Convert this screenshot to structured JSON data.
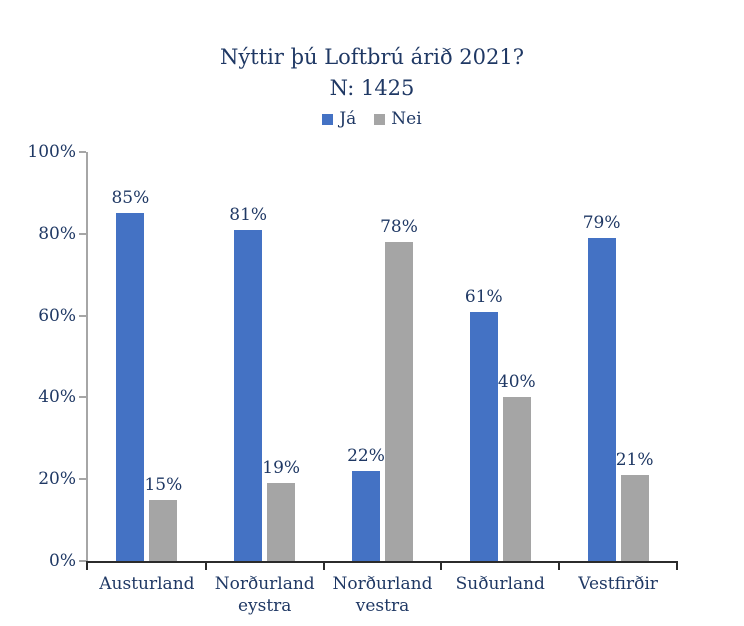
{
  "title": "Nýttir þú Loftbrú árið 2021?",
  "subtitle": "N: 1425",
  "colors": {
    "text": "#1F3864",
    "ja_blue": "#4472C4",
    "nei_gray": "#A5A5A5",
    "y_axis": "#A6A6A6",
    "x_axis": "#2B2B2B",
    "background": "#FFFFFF"
  },
  "chart_data": {
    "type": "bar",
    "title": "Nýttir þú Loftbrú árið 2021?",
    "subtitle": "N: 1425",
    "categories": [
      "Austurland",
      "Norðurland eystra",
      "Norðurland vestra",
      "Suðurland",
      "Vestfirðir"
    ],
    "series": [
      {
        "name": "Já",
        "color": "#4472C4",
        "values": [
          85,
          81,
          22,
          61,
          79
        ],
        "labels": [
          "85%",
          "81%",
          "22%",
          "61%",
          "79%"
        ]
      },
      {
        "name": "Nei",
        "color": "#A5A5A5",
        "values": [
          15,
          19,
          78,
          40,
          21
        ],
        "labels": [
          "15%",
          "19%",
          "78%",
          "40%",
          "21%"
        ]
      }
    ],
    "value_suffix": "%",
    "xlabel": "",
    "ylabel": "",
    "ylim": [
      0,
      100
    ],
    "ytick_step": 20,
    "ytick_labels": [
      "0%",
      "20%",
      "40%",
      "60%",
      "80%",
      "100%"
    ],
    "grid": false,
    "legend_position": "top",
    "data_labels_shown": true
  }
}
